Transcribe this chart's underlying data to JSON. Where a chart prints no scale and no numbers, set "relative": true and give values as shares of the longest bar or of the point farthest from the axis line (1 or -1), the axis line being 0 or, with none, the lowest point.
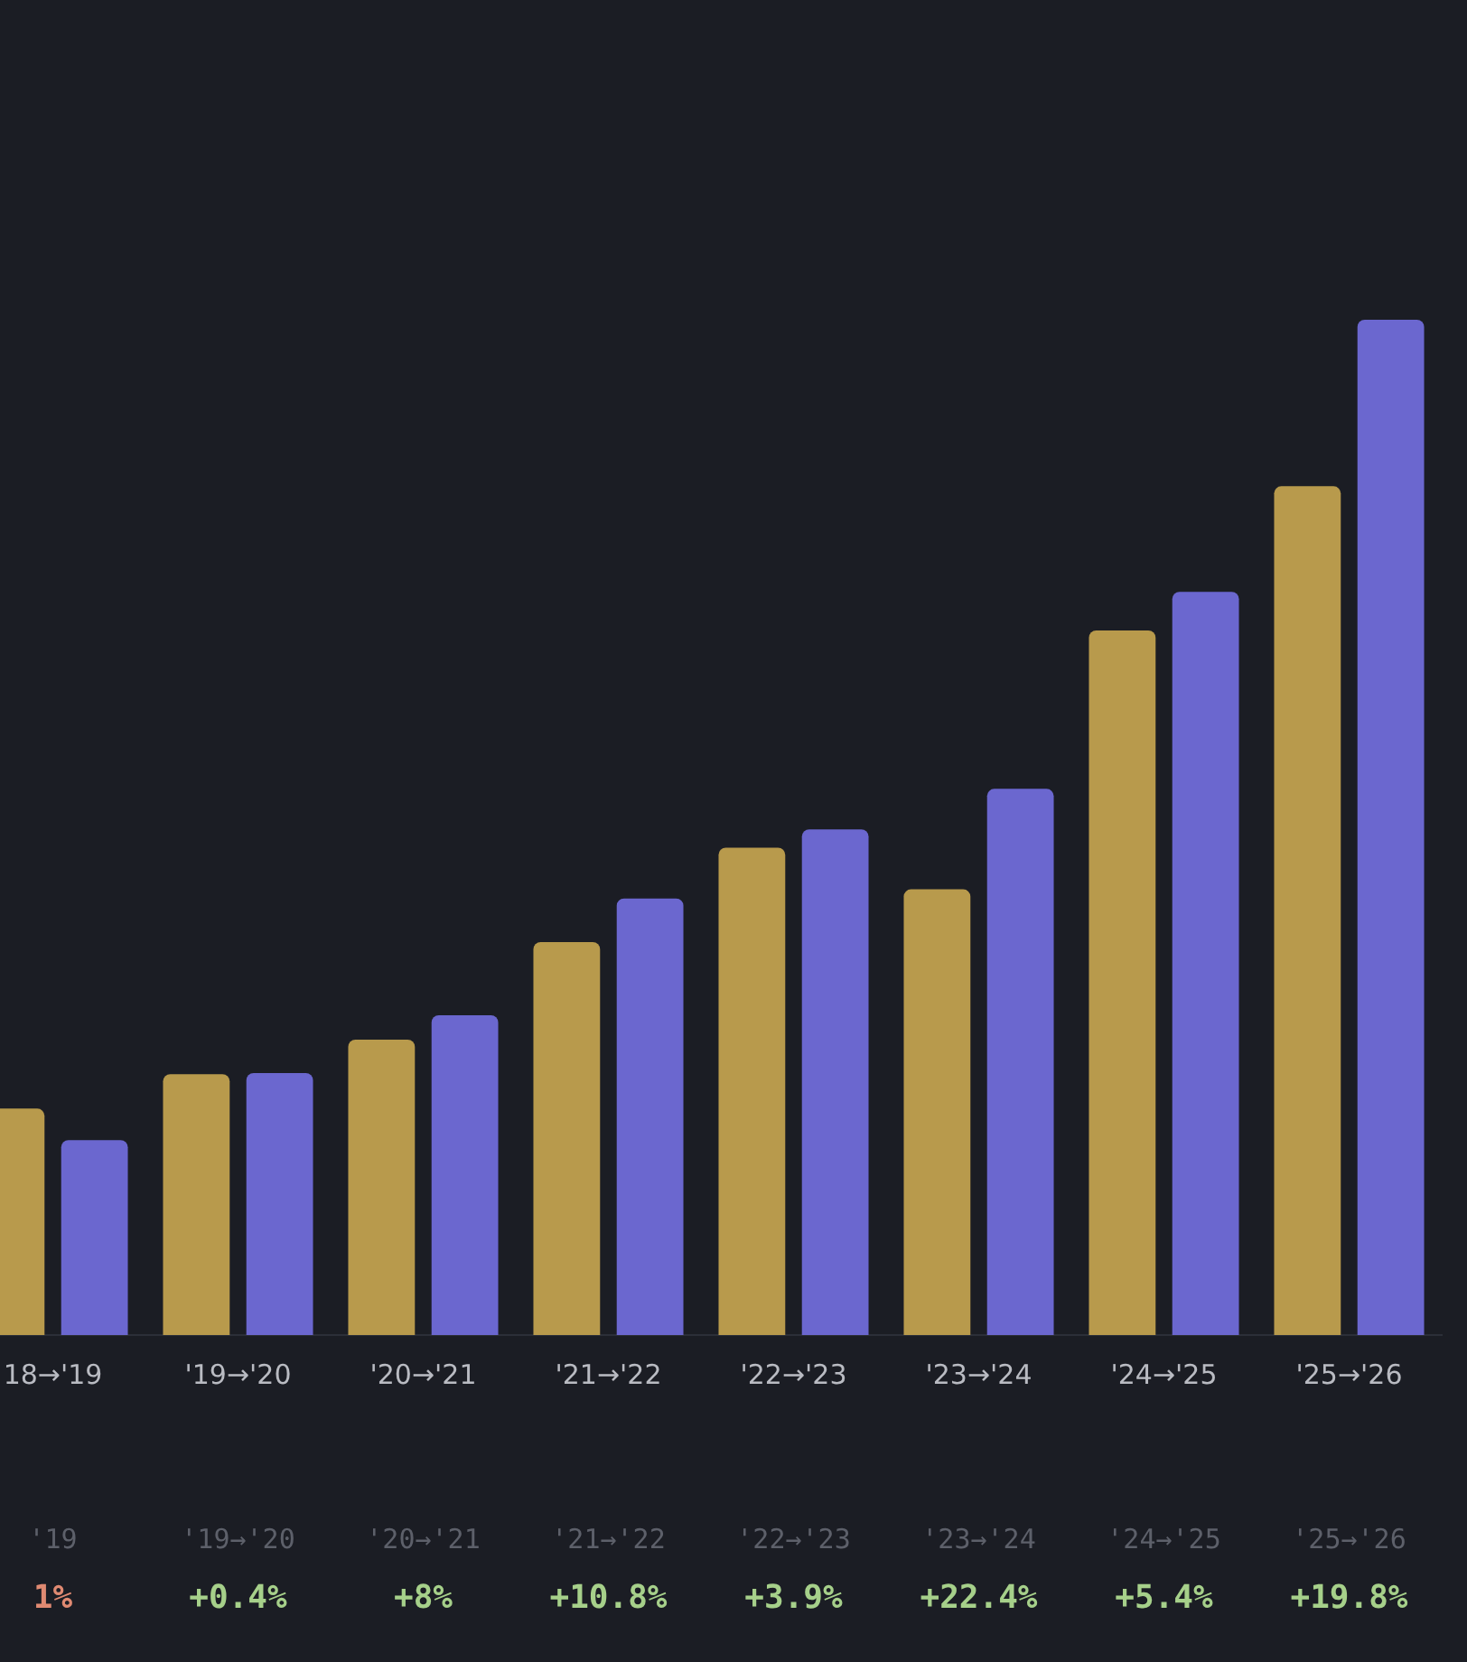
{
  "chart_data": {
    "type": "bar",
    "relative": true,
    "legend": false,
    "categories": [
      "18→'19",
      "'19→'20",
      "'20→'21",
      "'21→'22",
      "'22→'23",
      "'23→'24",
      "'24→'25",
      "'25→'26"
    ],
    "series": [
      {
        "color": "#b89a4c",
        "values": [
          0.223,
          0.257,
          0.291,
          0.387,
          0.48,
          0.439,
          0.694,
          0.836
        ]
      },
      {
        "color": "#6b67cf",
        "values": [
          0.192,
          0.258,
          0.315,
          0.43,
          0.498,
          0.538,
          0.732,
          1
        ]
      }
    ],
    "annotations": [
      "'19",
      "1%",
      "'19→'20",
      "+0.4%",
      "'20→'21",
      "+8%",
      "'21→'22",
      "+10.8%",
      "'22→'23",
      "+3.9%",
      "'23→'24",
      "+22.4%",
      "'24→'25",
      "+5.4%",
      "'25→'26",
      "+19.8%"
    ]
  }
}
